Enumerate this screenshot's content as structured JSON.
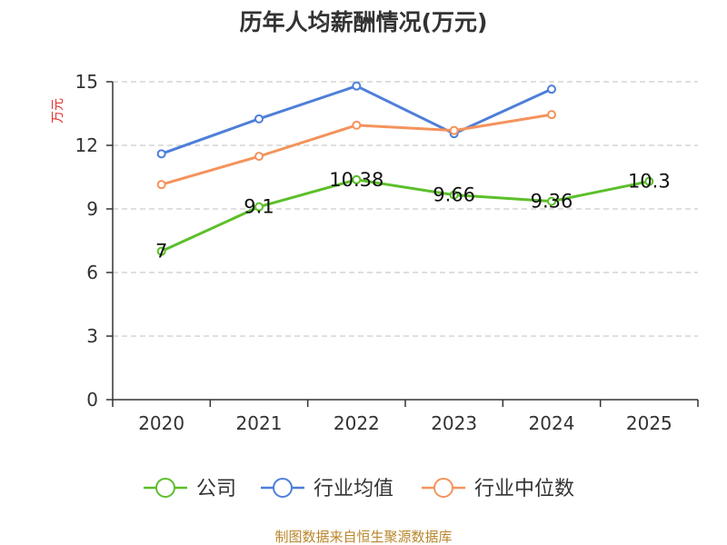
{
  "colors": {
    "company": "#5cbf2a",
    "industry_avg": "#4e7fd9",
    "industry_median": "#f4935c",
    "ylabel": "#e03030",
    "source": "#b8862b",
    "grid": "#bfbfbf",
    "axis": "#333333"
  },
  "source_text": "制图数据来自恒生聚源数据库",
  "chart_data": {
    "type": "line",
    "title": "历年人均薪酬情况(万元)",
    "xlabel": "",
    "ylabel": "万元",
    "categories": [
      "2020",
      "2021",
      "2022",
      "2023",
      "2024",
      "2025"
    ],
    "ylim": [
      0,
      15
    ],
    "yticks": [
      0,
      3,
      6,
      9,
      12,
      15
    ],
    "grid": true,
    "legend_position": "bottom",
    "series": [
      {
        "name": "公司",
        "color_key": "company",
        "values": [
          7,
          9.1,
          10.38,
          9.66,
          9.36,
          10.3
        ],
        "labels": [
          "7",
          "9.1",
          "10.38",
          "9.66",
          "9.36",
          "10.3"
        ]
      },
      {
        "name": "行业均值",
        "color_key": "industry_avg",
        "values": [
          11.6,
          13.25,
          14.8,
          12.55,
          14.65,
          null
        ]
      },
      {
        "name": "行业中位数",
        "color_key": "industry_median",
        "values": [
          10.15,
          11.48,
          12.95,
          12.7,
          13.45,
          null
        ]
      }
    ]
  }
}
